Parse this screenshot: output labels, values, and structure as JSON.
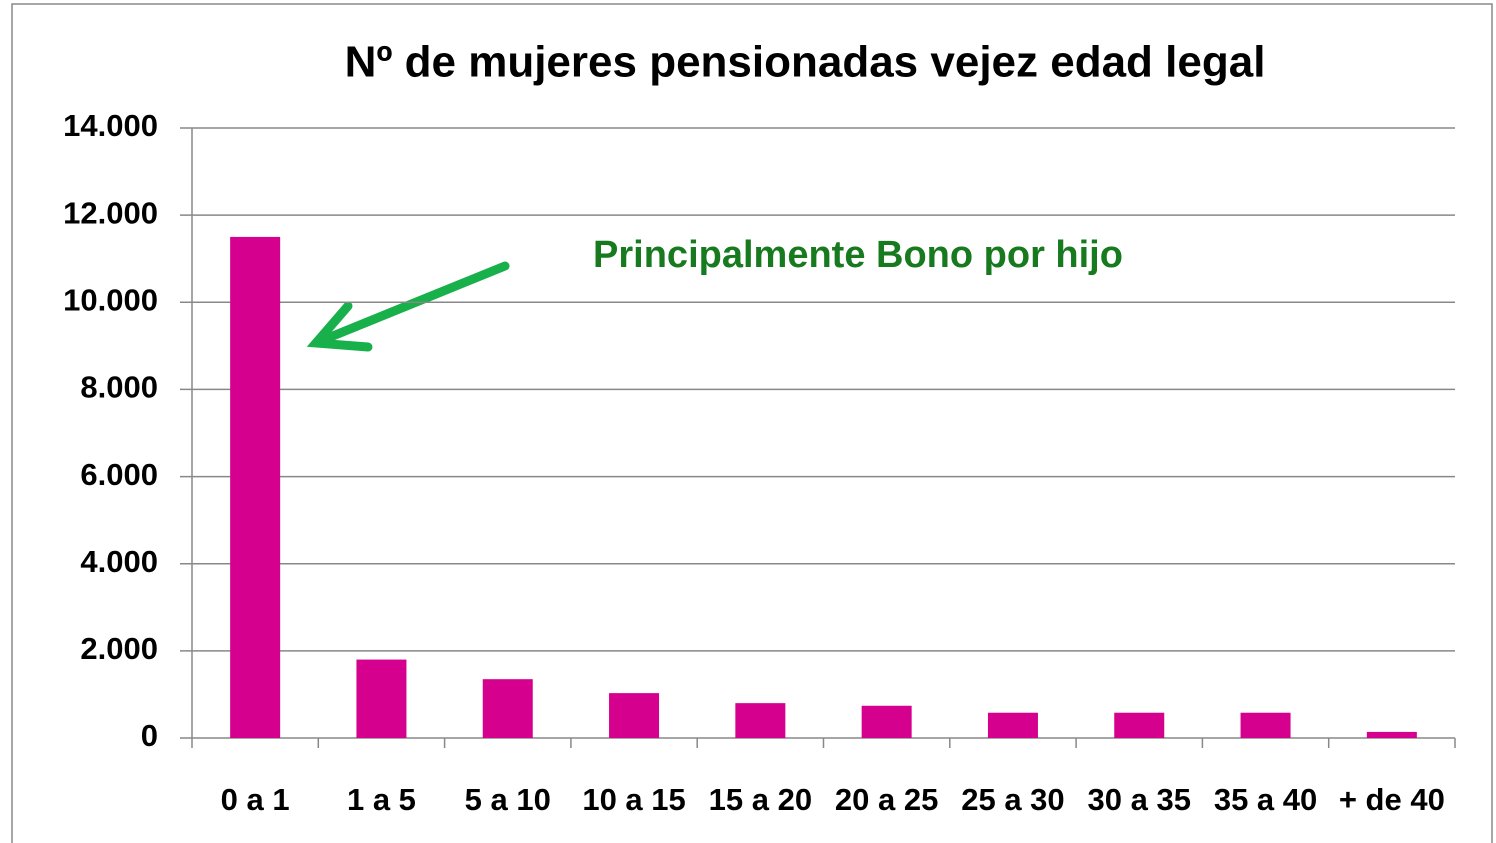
{
  "chart_data": {
    "type": "bar",
    "title": "Nº de mujeres pensionadas  vejez edad legal",
    "annotation": "Principalmente Bono por hijo",
    "categories": [
      "0 a 1",
      "1 a 5",
      "5 a 10",
      "10 a 15",
      "15 a 20",
      "20 a 25",
      "25 a 30",
      "30 a 35",
      "35 a 40",
      "+ de 40"
    ],
    "values": [
      11500,
      1800,
      1350,
      1030,
      800,
      740,
      580,
      580,
      580,
      140
    ],
    "color": "#d6008f",
    "ylim": [
      0,
      14000
    ],
    "yticks": [
      0,
      {
        "value": 2000,
        "label": "2.000"
      },
      {
        "value": 4000,
        "label": "4.000"
      },
      {
        "value": 6000,
        "label": "6.000"
      },
      {
        "value": 8000,
        "label": "8.000"
      },
      {
        "value": 10000,
        "label": "10.000"
      },
      {
        "value": 12000,
        "label": "12.000"
      },
      {
        "value": 14000,
        "label": "14.000"
      }
    ],
    "grid": true
  }
}
